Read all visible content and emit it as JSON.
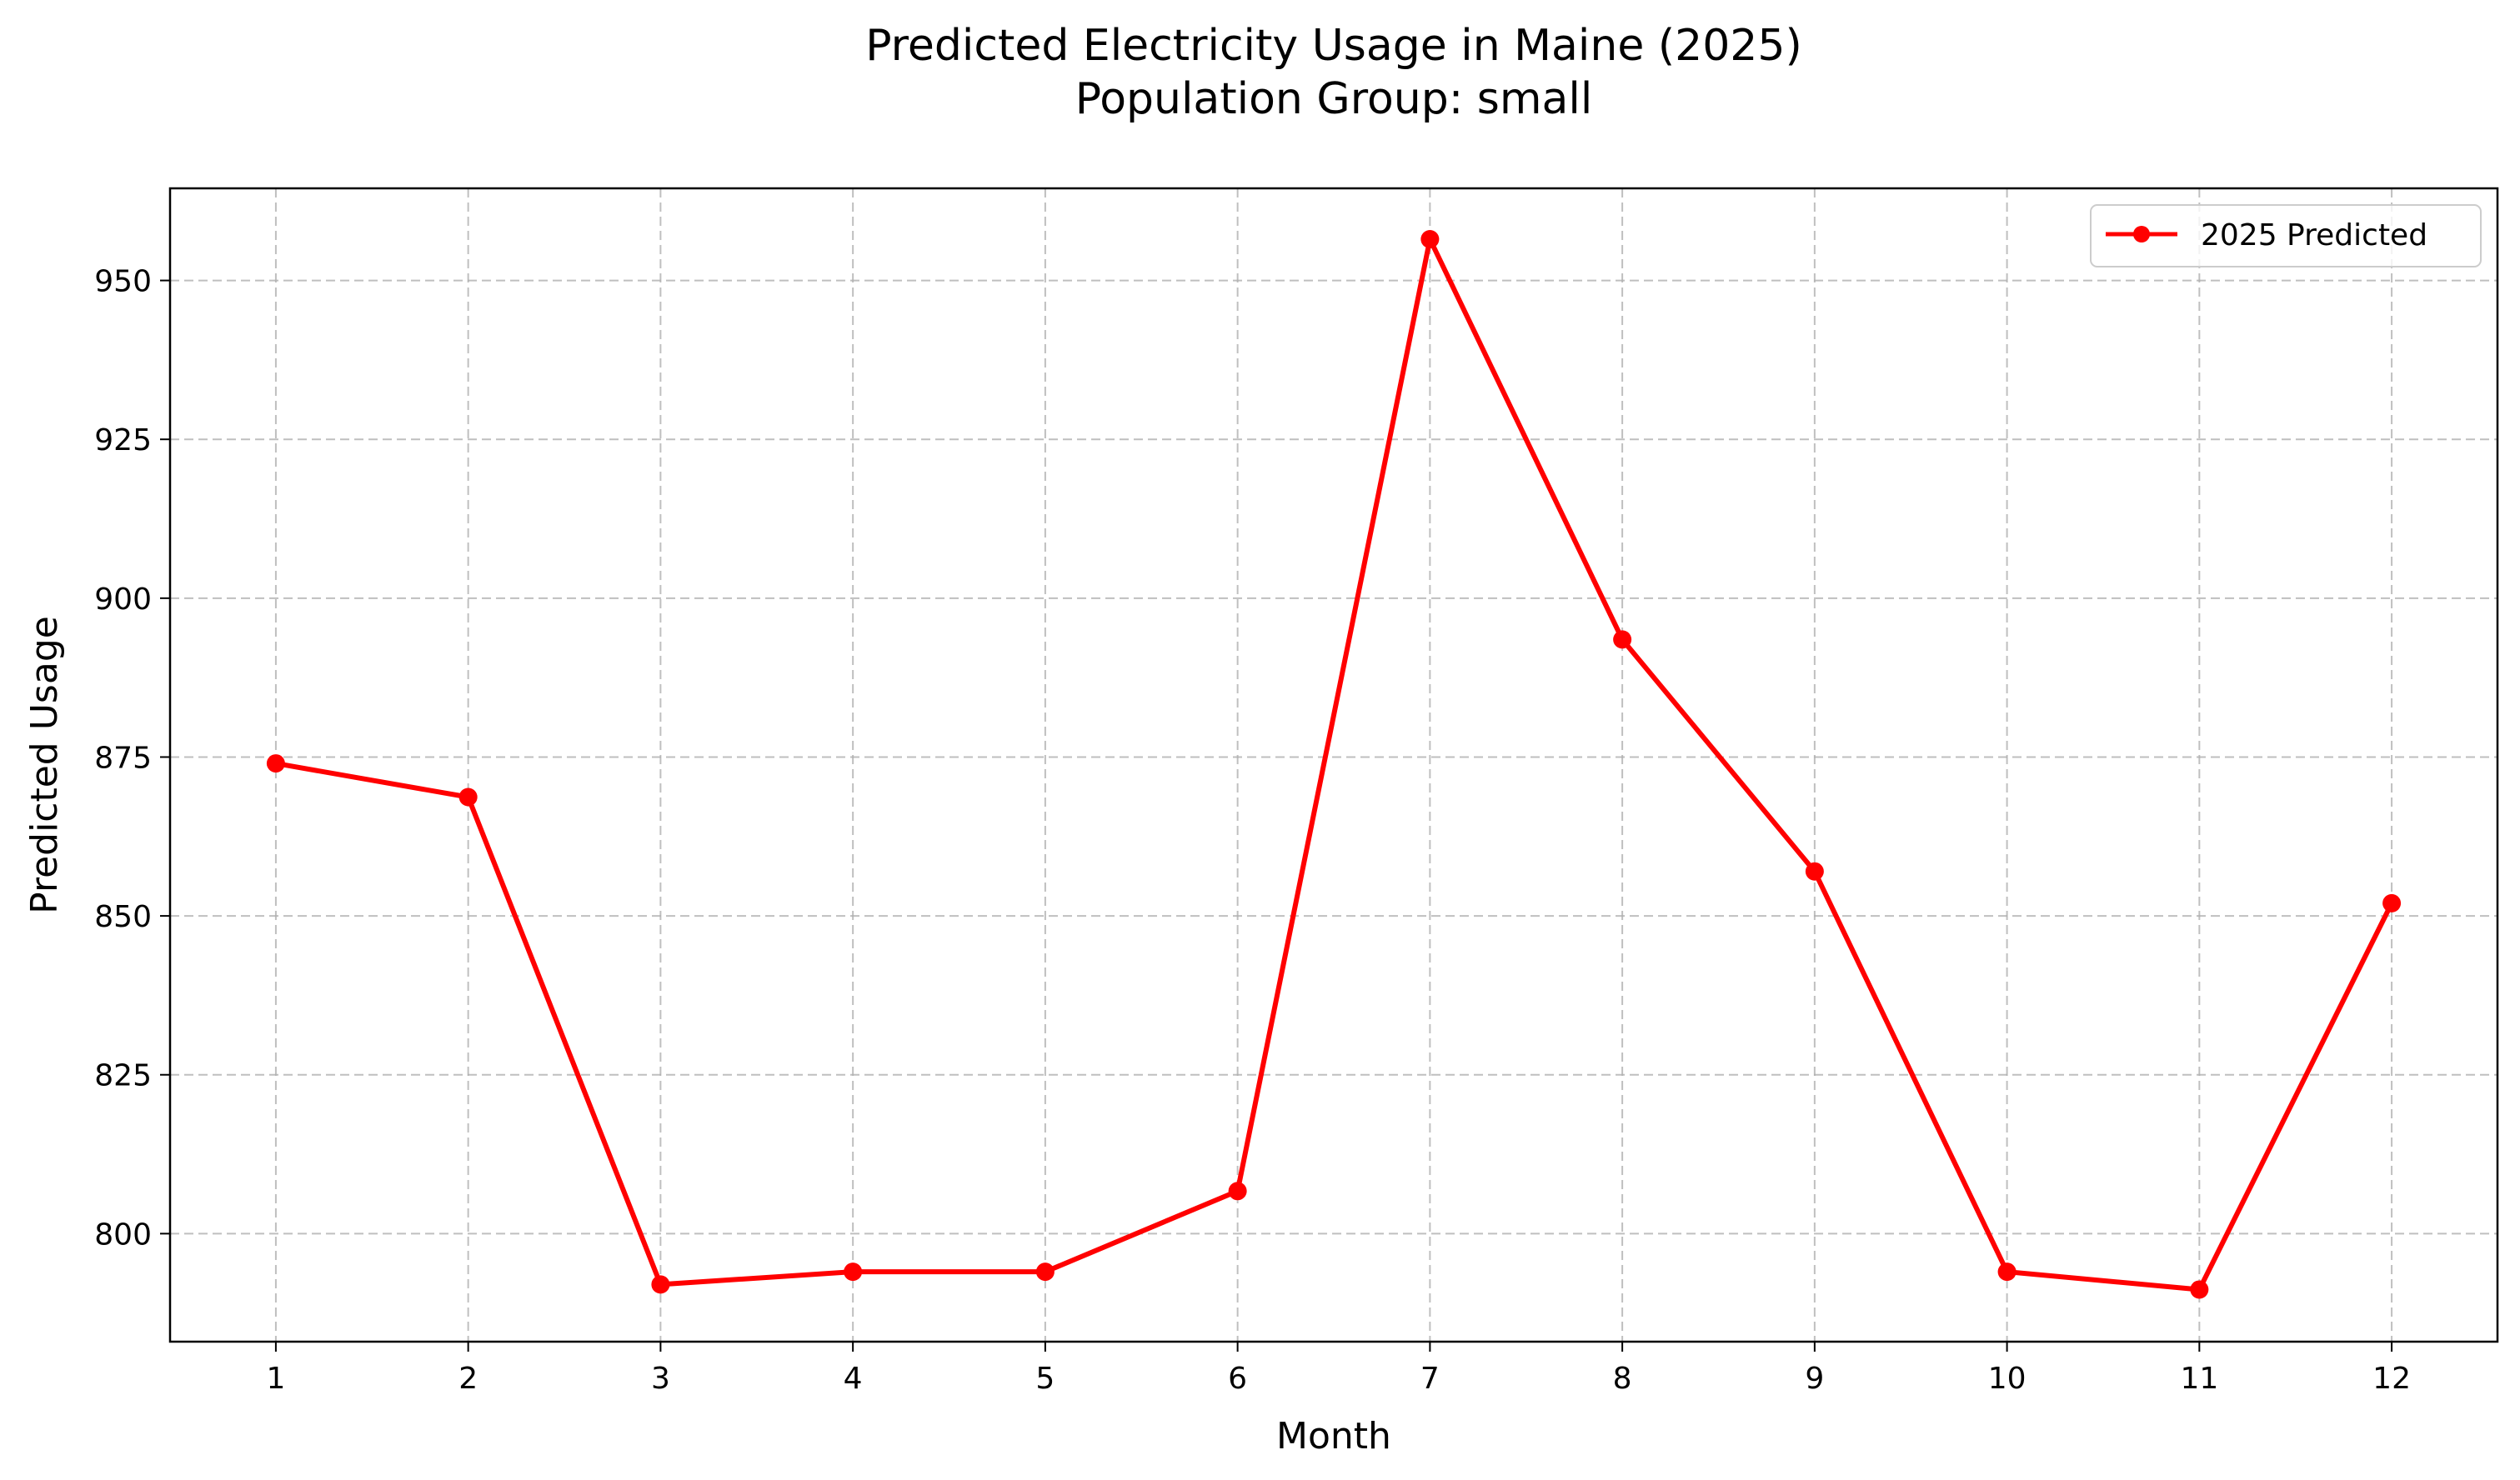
{
  "chart_data": {
    "type": "line",
    "title": "Predicted Electricity Usage in Maine (2025)",
    "subtitle": "Population Group: small",
    "xlabel": "Month",
    "ylabel": "Predicted Usage",
    "x": [
      1,
      2,
      3,
      4,
      5,
      6,
      7,
      8,
      9,
      10,
      11,
      12
    ],
    "x_ticks": [
      "1",
      "2",
      "3",
      "4",
      "5",
      "6",
      "7",
      "8",
      "9",
      "10",
      "11",
      "12"
    ],
    "y_ticks": [
      800,
      825,
      850,
      875,
      900,
      925,
      950
    ],
    "xlim": [
      0.45,
      12.55
    ],
    "ylim": [
      783.0,
      964.5
    ],
    "grid": true,
    "legend_position": "top-right",
    "series": [
      {
        "name": "2025 Predicted",
        "color": "#ff0000",
        "marker": "circle",
        "values": [
          874.0,
          868.7,
          792.0,
          794.0,
          794.0,
          806.7,
          956.5,
          893.5,
          857.0,
          794.0,
          791.2,
          852.0
        ]
      }
    ]
  }
}
